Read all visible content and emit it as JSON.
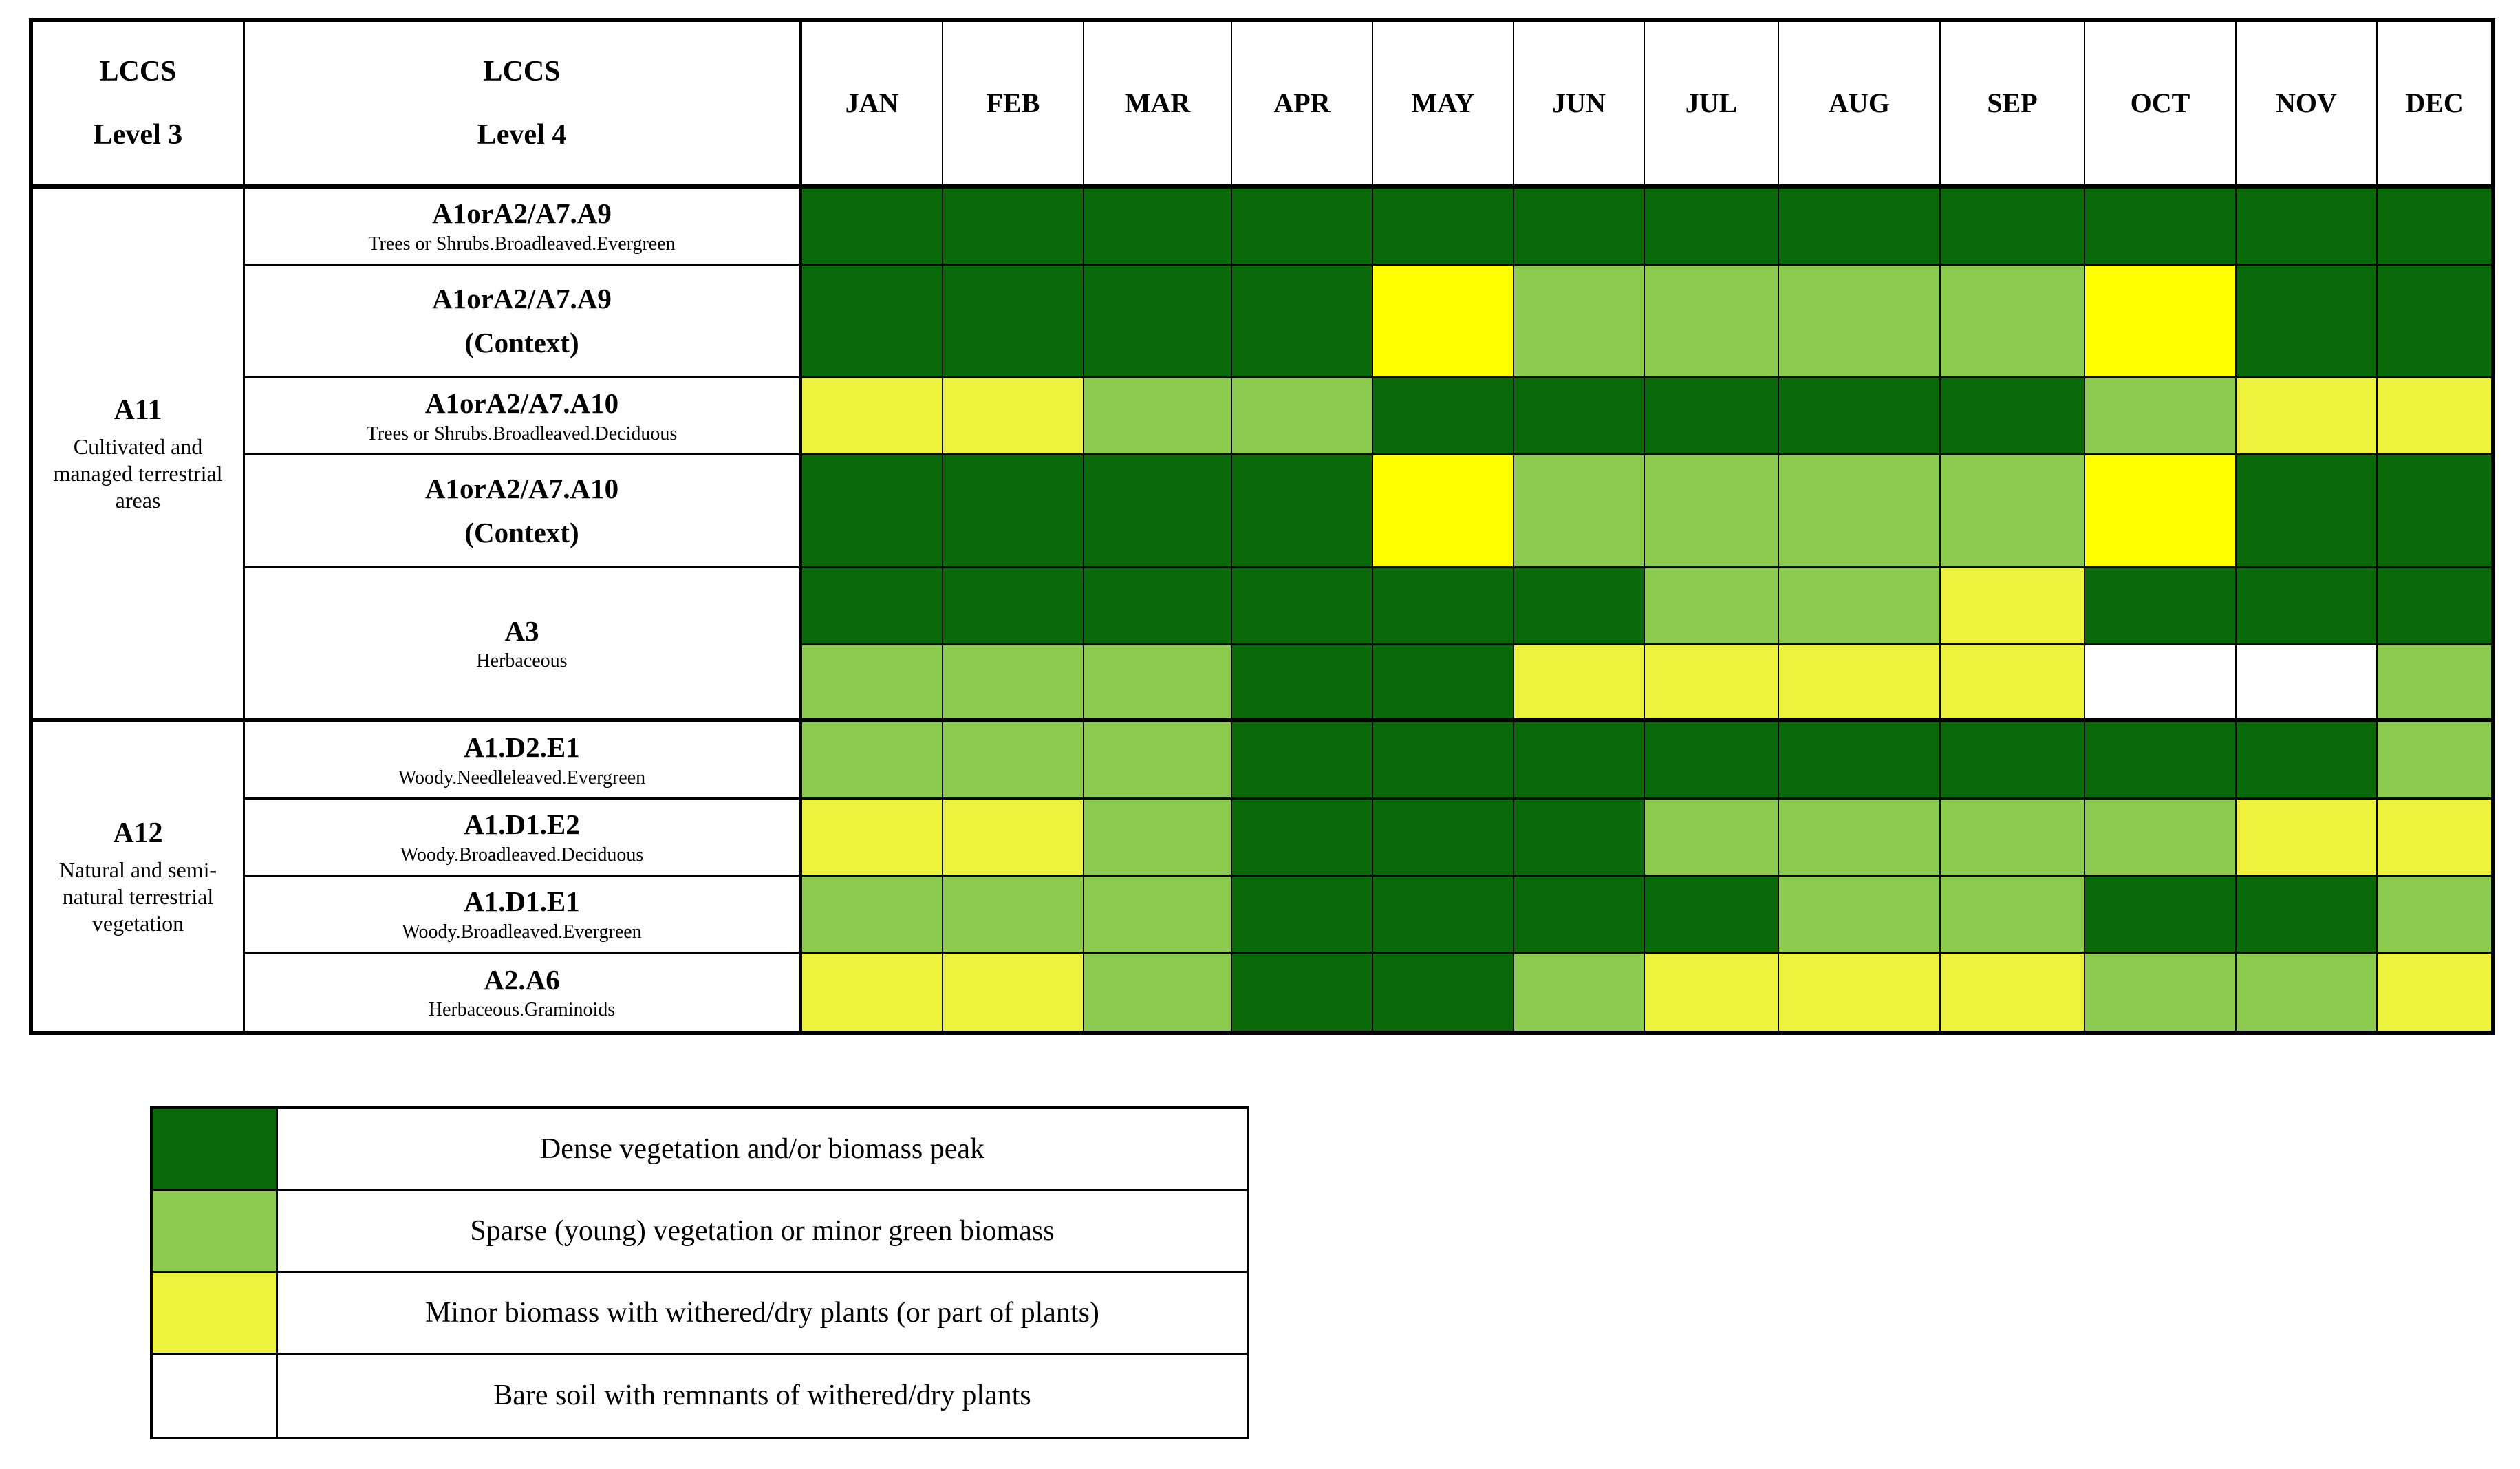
{
  "table": {
    "header": {
      "level3": [
        "LCCS",
        "Level 3"
      ],
      "level4": [
        "LCCS",
        "Level 4"
      ]
    },
    "months": [
      "JAN",
      "FEB",
      "MAR",
      "APR",
      "MAY",
      "JUN",
      "JUL",
      "AUG",
      "SEP",
      "OCT",
      "NOV",
      "DEC"
    ],
    "groups": [
      {
        "code": "A11",
        "description": "Cultivated and managed terrestrial areas"
      },
      {
        "code": "A12",
        "description": "Natural and semi-natural terrestrial vegetation"
      }
    ]
  },
  "chart_data": {
    "type": "heatmap",
    "columns": [
      "JAN",
      "FEB",
      "MAR",
      "APR",
      "MAY",
      "JUN",
      "JUL",
      "AUG",
      "SEP",
      "OCT",
      "NOV",
      "DEC"
    ],
    "value_classes": {
      "D": {
        "name": "dense-vegetation",
        "color": "#0a6a0a"
      },
      "S": {
        "name": "sparse-vegetation",
        "color": "#8dcb50"
      },
      "M": {
        "name": "minor-biomass-withered",
        "color": "#edf23c"
      },
      "Y": {
        "name": "minor-biomass-bright-yellow",
        "color": "#ffff00"
      },
      "W": {
        "name": "bare-soil",
        "color": "#ffffff"
      }
    },
    "rows": [
      {
        "level3": "A11",
        "code": "A1orA2/A7.A9",
        "sub": "Trees or Shrubs.Broadleaved.Evergreen",
        "bands": [
          "DDDDDDDDDDDD"
        ]
      },
      {
        "level3": "A11",
        "code": "A1orA2/A7.A9",
        "code2": "(Context)",
        "bands": [
          "DDDDYSSSSYDD"
        ]
      },
      {
        "level3": "A11",
        "code": "A1orA2/A7.A10",
        "sub": "Trees or Shrubs.Broadleaved.Deciduous",
        "bands": [
          "MMSSDDDDDSMM"
        ]
      },
      {
        "level3": "A11",
        "code": "A1orA2/A7.A10",
        "code2": "(Context)",
        "bands": [
          "DDDDYSSSSYDD"
        ]
      },
      {
        "level3": "A11",
        "code": "A3",
        "sub": "Herbaceous",
        "bands": [
          "DDDDDDSSMDDD",
          "SSSDDMMMMWWS"
        ]
      },
      {
        "level3": "A12",
        "code": "A1.D2.E1",
        "sub": "Woody.Needleleaved.Evergreen",
        "bands": [
          "SSSDDDDDDDDS"
        ]
      },
      {
        "level3": "A12",
        "code": "A1.D1.E2",
        "sub": "Woody.Broadleaved.Deciduous",
        "bands": [
          "MMSDDDSSSSMM"
        ]
      },
      {
        "level3": "A12",
        "code": "A1.D1.E1",
        "sub": "Woody.Broadleaved.Evergreen",
        "bands": [
          "SSSDDDDSSDDS"
        ]
      },
      {
        "level3": "A12",
        "code": "A2.A6",
        "sub": "Herbaceous.Graminoids",
        "bands": [
          "MMSDDSMMMSSM"
        ]
      }
    ]
  },
  "legend": {
    "items": [
      {
        "class_key": "D",
        "label": "Dense vegetation and/or biomass peak"
      },
      {
        "class_key": "S",
        "label": "Sparse (young) vegetation or minor green biomass"
      },
      {
        "class_key": "M",
        "label": "Minor biomass with withered/dry plants (or part of plants)"
      },
      {
        "class_key": "W",
        "label": "Bare soil with remnants of withered/dry plants"
      }
    ]
  }
}
